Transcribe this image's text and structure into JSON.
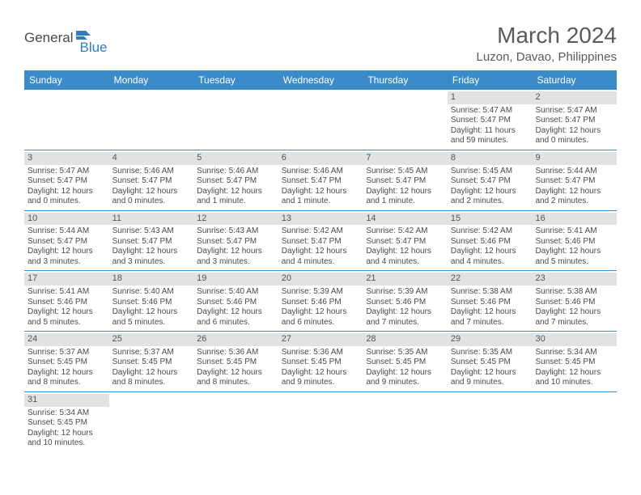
{
  "logo": {
    "text1": "General",
    "text2": "Blue"
  },
  "title": "March 2024",
  "location": "Luzon, Davao, Philippines",
  "colors": {
    "header_bg": "#3b8bc9",
    "header_fg": "#ffffff",
    "daynum_bg": "#e2e2e2",
    "row_border": "#3b8bc9",
    "text": "#4a4a4a",
    "logo_blue": "#2f7ec2"
  },
  "typography": {
    "title_fontsize": 28,
    "location_fontsize": 15,
    "header_fontsize": 12,
    "cell_fontsize": 10
  },
  "weekdays": [
    "Sunday",
    "Monday",
    "Tuesday",
    "Wednesday",
    "Thursday",
    "Friday",
    "Saturday"
  ],
  "weeks": [
    [
      {
        "blank": true
      },
      {
        "blank": true
      },
      {
        "blank": true
      },
      {
        "blank": true
      },
      {
        "blank": true
      },
      {
        "day": "1",
        "sunrise": "5:47 AM",
        "sunset": "5:47 PM",
        "daylight": "11 hours and 59 minutes."
      },
      {
        "day": "2",
        "sunrise": "5:47 AM",
        "sunset": "5:47 PM",
        "daylight": "12 hours and 0 minutes."
      }
    ],
    [
      {
        "day": "3",
        "sunrise": "5:47 AM",
        "sunset": "5:47 PM",
        "daylight": "12 hours and 0 minutes."
      },
      {
        "day": "4",
        "sunrise": "5:46 AM",
        "sunset": "5:47 PM",
        "daylight": "12 hours and 0 minutes."
      },
      {
        "day": "5",
        "sunrise": "5:46 AM",
        "sunset": "5:47 PM",
        "daylight": "12 hours and 1 minute."
      },
      {
        "day": "6",
        "sunrise": "5:46 AM",
        "sunset": "5:47 PM",
        "daylight": "12 hours and 1 minute."
      },
      {
        "day": "7",
        "sunrise": "5:45 AM",
        "sunset": "5:47 PM",
        "daylight": "12 hours and 1 minute."
      },
      {
        "day": "8",
        "sunrise": "5:45 AM",
        "sunset": "5:47 PM",
        "daylight": "12 hours and 2 minutes."
      },
      {
        "day": "9",
        "sunrise": "5:44 AM",
        "sunset": "5:47 PM",
        "daylight": "12 hours and 2 minutes."
      }
    ],
    [
      {
        "day": "10",
        "sunrise": "5:44 AM",
        "sunset": "5:47 PM",
        "daylight": "12 hours and 3 minutes."
      },
      {
        "day": "11",
        "sunrise": "5:43 AM",
        "sunset": "5:47 PM",
        "daylight": "12 hours and 3 minutes."
      },
      {
        "day": "12",
        "sunrise": "5:43 AM",
        "sunset": "5:47 PM",
        "daylight": "12 hours and 3 minutes."
      },
      {
        "day": "13",
        "sunrise": "5:42 AM",
        "sunset": "5:47 PM",
        "daylight": "12 hours and 4 minutes."
      },
      {
        "day": "14",
        "sunrise": "5:42 AM",
        "sunset": "5:47 PM",
        "daylight": "12 hours and 4 minutes."
      },
      {
        "day": "15",
        "sunrise": "5:42 AM",
        "sunset": "5:46 PM",
        "daylight": "12 hours and 4 minutes."
      },
      {
        "day": "16",
        "sunrise": "5:41 AM",
        "sunset": "5:46 PM",
        "daylight": "12 hours and 5 minutes."
      }
    ],
    [
      {
        "day": "17",
        "sunrise": "5:41 AM",
        "sunset": "5:46 PM",
        "daylight": "12 hours and 5 minutes."
      },
      {
        "day": "18",
        "sunrise": "5:40 AM",
        "sunset": "5:46 PM",
        "daylight": "12 hours and 5 minutes."
      },
      {
        "day": "19",
        "sunrise": "5:40 AM",
        "sunset": "5:46 PM",
        "daylight": "12 hours and 6 minutes."
      },
      {
        "day": "20",
        "sunrise": "5:39 AM",
        "sunset": "5:46 PM",
        "daylight": "12 hours and 6 minutes."
      },
      {
        "day": "21",
        "sunrise": "5:39 AM",
        "sunset": "5:46 PM",
        "daylight": "12 hours and 7 minutes."
      },
      {
        "day": "22",
        "sunrise": "5:38 AM",
        "sunset": "5:46 PM",
        "daylight": "12 hours and 7 minutes."
      },
      {
        "day": "23",
        "sunrise": "5:38 AM",
        "sunset": "5:46 PM",
        "daylight": "12 hours and 7 minutes."
      }
    ],
    [
      {
        "day": "24",
        "sunrise": "5:37 AM",
        "sunset": "5:45 PM",
        "daylight": "12 hours and 8 minutes."
      },
      {
        "day": "25",
        "sunrise": "5:37 AM",
        "sunset": "5:45 PM",
        "daylight": "12 hours and 8 minutes."
      },
      {
        "day": "26",
        "sunrise": "5:36 AM",
        "sunset": "5:45 PM",
        "daylight": "12 hours and 8 minutes."
      },
      {
        "day": "27",
        "sunrise": "5:36 AM",
        "sunset": "5:45 PM",
        "daylight": "12 hours and 9 minutes."
      },
      {
        "day": "28",
        "sunrise": "5:35 AM",
        "sunset": "5:45 PM",
        "daylight": "12 hours and 9 minutes."
      },
      {
        "day": "29",
        "sunrise": "5:35 AM",
        "sunset": "5:45 PM",
        "daylight": "12 hours and 9 minutes."
      },
      {
        "day": "30",
        "sunrise": "5:34 AM",
        "sunset": "5:45 PM",
        "daylight": "12 hours and 10 minutes."
      }
    ],
    [
      {
        "day": "31",
        "sunrise": "5:34 AM",
        "sunset": "5:45 PM",
        "daylight": "12 hours and 10 minutes."
      },
      {
        "blank": true
      },
      {
        "blank": true
      },
      {
        "blank": true
      },
      {
        "blank": true
      },
      {
        "blank": true
      },
      {
        "blank": true
      }
    ]
  ],
  "labels": {
    "sunrise": "Sunrise: ",
    "sunset": "Sunset: ",
    "daylight": "Daylight: "
  }
}
